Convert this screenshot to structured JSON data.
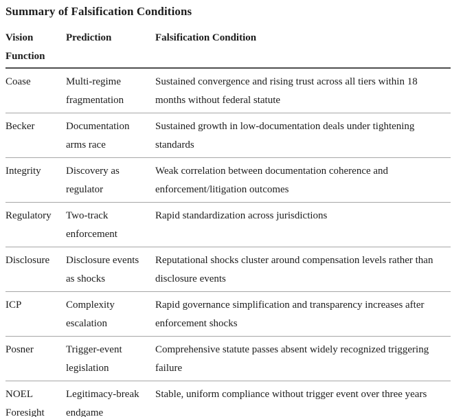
{
  "title": "Summary of Falsification Conditions",
  "colors": {
    "text": "#1c1c1c",
    "header_rule": "#4d4d4d",
    "row_rule": "#a6a6a6",
    "background": "#ffffff"
  },
  "table": {
    "columns": [
      "Vision Function",
      "Prediction",
      "Falsification Condition"
    ],
    "rows": [
      {
        "vision_function": "Coase",
        "prediction": "Multi-regime fragmentation",
        "falsification_condition": "Sustained convergence and rising trust across all tiers within 18 months without federal statute"
      },
      {
        "vision_function": "Becker",
        "prediction": "Documentation arms race",
        "falsification_condition": "Sustained growth in low-documentation deals under tightening standards"
      },
      {
        "vision_function": "Integrity",
        "prediction": "Discovery as regulator",
        "falsification_condition": "Weak correlation between documentation coherence and enforcement/litigation outcomes"
      },
      {
        "vision_function": "Regulatory",
        "prediction": "Two-track enforcement",
        "falsification_condition": "Rapid standardization across jurisdictions"
      },
      {
        "vision_function": "Disclosure",
        "prediction": "Disclosure events as shocks",
        "falsification_condition": "Reputational shocks cluster around compensation levels rather than disclosure events"
      },
      {
        "vision_function": "ICP",
        "prediction": "Complexity escalation",
        "falsification_condition": "Rapid governance simplification and transparency increases after enforcement shocks"
      },
      {
        "vision_function": "Posner",
        "prediction": "Trigger-event legislation",
        "falsification_condition": "Comprehensive statute passes absent widely recognized triggering failure"
      },
      {
        "vision_function": "NOEL Foresight",
        "prediction": "Legitimacy-break endgame",
        "falsification_condition": "Stable, uniform compliance without trigger event over three years"
      }
    ]
  }
}
